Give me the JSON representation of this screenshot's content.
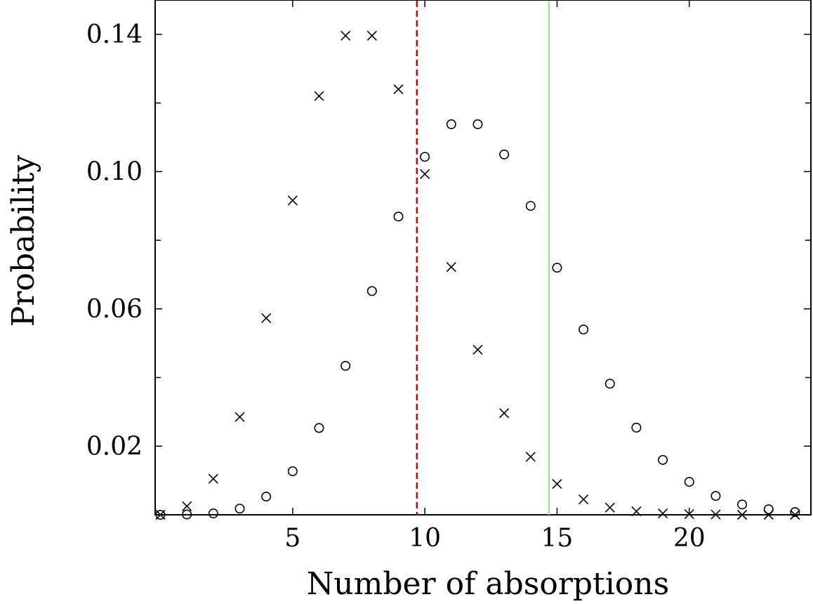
{
  "chart_data": {
    "type": "scatter",
    "title": "",
    "xlabel": "Number of absorptions",
    "ylabel": "Probability",
    "xlim": [
      -0.2,
      24.6
    ],
    "ylim": [
      0,
      0.15
    ],
    "x_ticks": [
      5,
      10,
      15,
      20
    ],
    "x_tick_labels": [
      "5",
      "10",
      "15",
      "20"
    ],
    "y_ticks": [
      0.02,
      0.06,
      0.1,
      0.14
    ],
    "y_tick_labels": [
      "0.02",
      "0.06",
      "0.10",
      "0.14"
    ],
    "y_minor_ticks": [
      0.04,
      0.08,
      0.12
    ],
    "grid": false,
    "series": [
      {
        "marker": "x",
        "color": "#000000",
        "x": [
          0,
          1,
          2,
          3,
          4,
          5,
          6,
          7,
          8,
          9,
          10,
          11,
          12,
          13,
          14,
          15,
          16,
          17,
          18,
          19,
          20,
          21,
          22,
          23,
          24
        ],
        "values": [
          0.0,
          0.0025,
          0.0105,
          0.0285,
          0.0573,
          0.0916,
          0.122,
          0.1396,
          0.1396,
          0.124,
          0.0993,
          0.0722,
          0.0481,
          0.0296,
          0.0169,
          0.009,
          0.0045,
          0.0021,
          0.001,
          0.0004,
          0.0002,
          0.0001,
          0.0,
          0.0,
          0.0
        ]
      },
      {
        "marker": "o",
        "color": "#000000",
        "x": [
          0,
          1,
          2,
          3,
          4,
          5,
          6,
          7,
          8,
          9,
          10,
          11,
          12,
          13,
          14,
          15,
          16,
          17,
          18,
          19,
          20,
          21,
          22,
          23,
          24
        ],
        "values": [
          0.0,
          0.0001,
          0.0004,
          0.0018,
          0.0053,
          0.0127,
          0.0253,
          0.0434,
          0.0652,
          0.0869,
          0.1043,
          0.1138,
          0.1138,
          0.105,
          0.09,
          0.072,
          0.054,
          0.0382,
          0.0254,
          0.016,
          0.0096,
          0.0055,
          0.003,
          0.0016,
          0.0008
        ]
      }
    ],
    "vlines": [
      {
        "x": 9.7,
        "color": "#cc0000",
        "style": "dashed"
      },
      {
        "x": 14.7,
        "color": "#90ee90",
        "style": "solid"
      }
    ]
  }
}
